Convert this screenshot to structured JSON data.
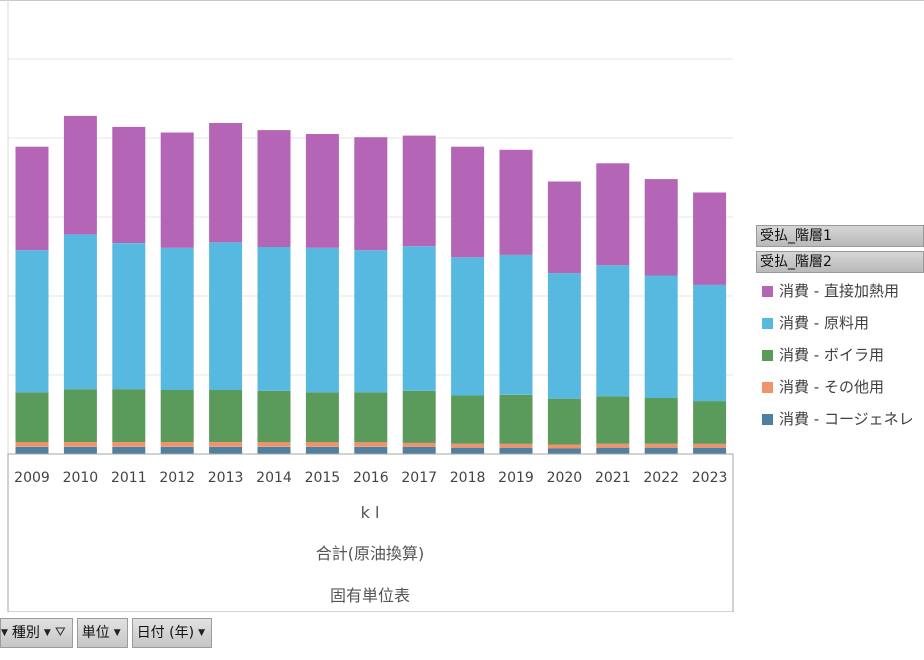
{
  "legend": {
    "header1": "受払_階層1",
    "header2": "受払_階層2",
    "items": [
      {
        "label": "消費 - 直接加熱用",
        "color": "#b565b5"
      },
      {
        "label": "消費 - 原料用",
        "color": "#57b8e0"
      },
      {
        "label": "消費 - ボイラ用",
        "color": "#5a9a5a"
      },
      {
        "label": "消費 - その他用",
        "color": "#f0926a"
      },
      {
        "label": "消費 - コージェネレ",
        "color": "#4f80a0"
      }
    ]
  },
  "axis_labels": {
    "unit": "k l",
    "measure": "合計(原油換算)",
    "table": "固有単位表"
  },
  "fields": [
    {
      "label": "種別"
    },
    {
      "label": "単位"
    },
    {
      "label": "日付 (年)"
    }
  ],
  "chart_data": {
    "type": "bar",
    "stacked": true,
    "categories": [
      "2009",
      "2010",
      "2011",
      "2012",
      "2013",
      "2014",
      "2015",
      "2016",
      "2017",
      "2018",
      "2019",
      "2020",
      "2021",
      "2022",
      "2023"
    ],
    "series": [
      {
        "name": "消費 - コージェネレ",
        "color": "#4f80a0",
        "values": [
          0.9,
          0.9,
          0.9,
          0.9,
          0.9,
          0.9,
          0.9,
          0.9,
          0.9,
          0.8,
          0.8,
          0.7,
          0.8,
          0.8,
          0.8
        ]
      },
      {
        "name": "消費 - その他用",
        "color": "#f0926a",
        "values": [
          0.6,
          0.6,
          0.6,
          0.6,
          0.6,
          0.6,
          0.6,
          0.6,
          0.5,
          0.5,
          0.5,
          0.5,
          0.5,
          0.5,
          0.5
        ]
      },
      {
        "name": "消費 - ボイラ用",
        "color": "#5a9a5a",
        "values": [
          6.3,
          6.7,
          6.7,
          6.6,
          6.6,
          6.5,
          6.3,
          6.3,
          6.6,
          6.1,
          6.2,
          5.8,
          6.0,
          5.8,
          5.4
        ]
      },
      {
        "name": "消費 - 原料用",
        "color": "#57b8e0",
        "values": [
          18.0,
          19.6,
          18.5,
          18.0,
          18.7,
          18.2,
          18.3,
          18.0,
          18.3,
          17.5,
          17.7,
          15.9,
          16.6,
          15.5,
          14.7
        ]
      },
      {
        "name": "消費 - 直接加熱用",
        "color": "#b565b5",
        "values": [
          13.1,
          15.0,
          14.7,
          14.6,
          15.1,
          14.8,
          14.4,
          14.3,
          14.0,
          14.0,
          13.3,
          11.6,
          12.9,
          12.2,
          11.7
        ]
      }
    ],
    "ylim": [
      0,
      50
    ],
    "grid": true,
    "legend_position": "right"
  }
}
